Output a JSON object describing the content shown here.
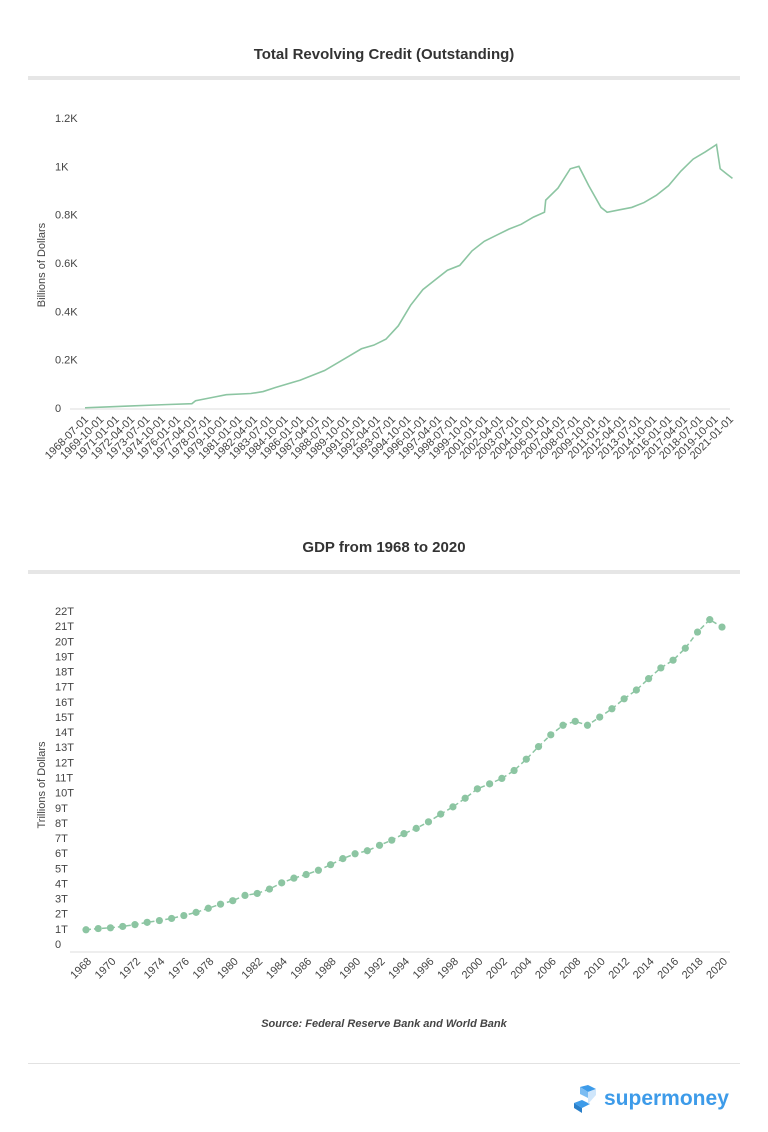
{
  "chart_data": [
    {
      "type": "line",
      "title": "Total Revolving Credit (Outstanding)",
      "ylabel": "Billions of Dollars",
      "xlabel": "",
      "ylim": [
        0,
        1200
      ],
      "yticks": [
        "0",
        "0.2K",
        "0.4K",
        "0.6K",
        "0.8K",
        "1K",
        "1.2K"
      ],
      "xticks": [
        "1968-07-01",
        "1969-10-01",
        "1971-01-01",
        "1972-04-01",
        "1973-07-01",
        "1974-10-01",
        "1976-01-01",
        "1977-04-01",
        "1978-07-01",
        "1979-10-01",
        "1981-01-01",
        "1982-04-01",
        "1983-07-01",
        "1984-10-01",
        "1986-01-01",
        "1987-04-01",
        "1988-07-01",
        "1989-10-01",
        "1991-01-01",
        "1992-04-01",
        "1993-07-01",
        "1994-10-01",
        "1996-01-01",
        "1997-04-01",
        "1998-07-01",
        "1999-10-01",
        "2001-01-01",
        "2002-04-01",
        "2003-07-01",
        "2004-10-01",
        "2006-01-01",
        "2007-04-01",
        "2008-07-01",
        "2009-10-01",
        "2011-01-01",
        "2012-04-01",
        "2013-07-01",
        "2014-10-01",
        "2016-01-01",
        "2017-04-01",
        "2018-07-01",
        "2019-10-01",
        "2021-01-01"
      ],
      "x": [
        1968.5,
        1970,
        1972,
        1975,
        1977.2,
        1977.5,
        1979,
        1980,
        1982,
        1983,
        1984,
        1986,
        1988,
        1990,
        1991,
        1992,
        1993,
        1994,
        1995,
        1996,
        1997,
        1998,
        1999,
        2000,
        2001,
        2002,
        2003,
        2004,
        2005,
        2005.9,
        2006.0,
        2007,
        2008,
        2008.7,
        2009.5,
        2010.5,
        2011,
        2012,
        2013,
        2014,
        2015,
        2016,
        2017,
        2018,
        2019,
        2019.9,
        2020.2,
        2020.7,
        2021.2
      ],
      "values": [
        1,
        4,
        8,
        14,
        18,
        30,
        45,
        55,
        60,
        68,
        85,
        115,
        155,
        215,
        245,
        260,
        285,
        340,
        425,
        490,
        530,
        570,
        590,
        650,
        690,
        715,
        740,
        760,
        790,
        810,
        860,
        910,
        990,
        1000,
        920,
        830,
        810,
        820,
        830,
        850,
        880,
        920,
        980,
        1030,
        1060,
        1090,
        990,
        970,
        950
      ],
      "color": "#8cc5a2",
      "grid": false
    },
    {
      "type": "line",
      "title": "GDP from 1968 to 2020",
      "ylabel": "Trillions of Dollars",
      "xlabel": "",
      "ylim": [
        0,
        22
      ],
      "yticks": [
        "0",
        "1T",
        "2T",
        "3T",
        "4T",
        "5T",
        "6T",
        "7T",
        "8T",
        "9T",
        "10T",
        "11T",
        "12T",
        "13T",
        "14T",
        "15T",
        "16T",
        "17T",
        "18T",
        "19T",
        "20T",
        "21T",
        "22T"
      ],
      "xticks": [
        "1968",
        "1970",
        "1972",
        "1974",
        "1976",
        "1978",
        "1980",
        "1982",
        "1984",
        "1986",
        "1988",
        "1990",
        "1992",
        "1994",
        "1996",
        "1998",
        "2000",
        "2002",
        "2004",
        "2006",
        "2008",
        "2010",
        "2012",
        "2014",
        "2016",
        "2018",
        "2020"
      ],
      "x": [
        1968,
        1969,
        1970,
        1971,
        1972,
        1973,
        1974,
        1975,
        1976,
        1977,
        1978,
        1979,
        1980,
        1981,
        1982,
        1983,
        1984,
        1985,
        1986,
        1987,
        1988,
        1989,
        1990,
        1991,
        1992,
        1993,
        1994,
        1995,
        1996,
        1997,
        1998,
        1999,
        2000,
        2001,
        2002,
        2003,
        2004,
        2005,
        2006,
        2007,
        2008,
        2009,
        2010,
        2011,
        2012,
        2013,
        2014,
        2015,
        2016,
        2017,
        2018,
        2019,
        2020
      ],
      "values": [
        0.94,
        1.02,
        1.07,
        1.16,
        1.28,
        1.43,
        1.55,
        1.69,
        1.88,
        2.09,
        2.36,
        2.63,
        2.86,
        3.21,
        3.34,
        3.63,
        4.04,
        4.35,
        4.59,
        4.87,
        5.24,
        5.64,
        5.96,
        6.16,
        6.52,
        6.86,
        7.29,
        7.64,
        8.07,
        8.58,
        9.06,
        9.63,
        10.25,
        10.58,
        10.94,
        11.46,
        12.21,
        13.04,
        13.82,
        14.45,
        14.71,
        14.45,
        14.99,
        15.54,
        16.2,
        16.78,
        17.53,
        18.24,
        18.75,
        19.54,
        20.61,
        21.43,
        20.94
      ],
      "color": "#8cc5a2",
      "line_style": "dashed",
      "markers": true,
      "grid": false
    }
  ],
  "source": "Source: Federal Reserve Bank and World Bank",
  "logo": {
    "text": "supermoney",
    "color": "#3d9be9"
  }
}
